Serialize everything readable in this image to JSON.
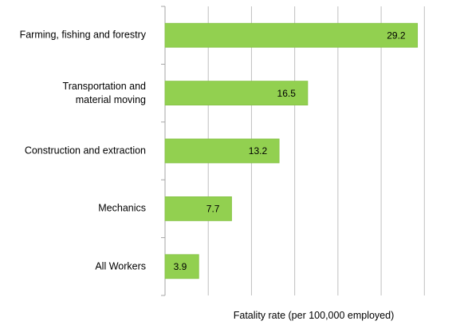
{
  "chart_data": {
    "type": "bar",
    "orientation": "horizontal",
    "x_label": "Fatality rate (per 100,000 employed)",
    "categories": [
      "Farming, fishing and forestry",
      "Transportation and\nmaterial moving",
      "Construction and extraction",
      "Mechanics",
      "All Workers"
    ],
    "values": [
      29.2,
      16.5,
      13.2,
      7.7,
      3.9
    ],
    "color": "#92d050",
    "xlim": [
      0,
      34.4
    ],
    "xticks": [
      0,
      5,
      10,
      15,
      20,
      25,
      30
    ],
    "grid": true
  }
}
